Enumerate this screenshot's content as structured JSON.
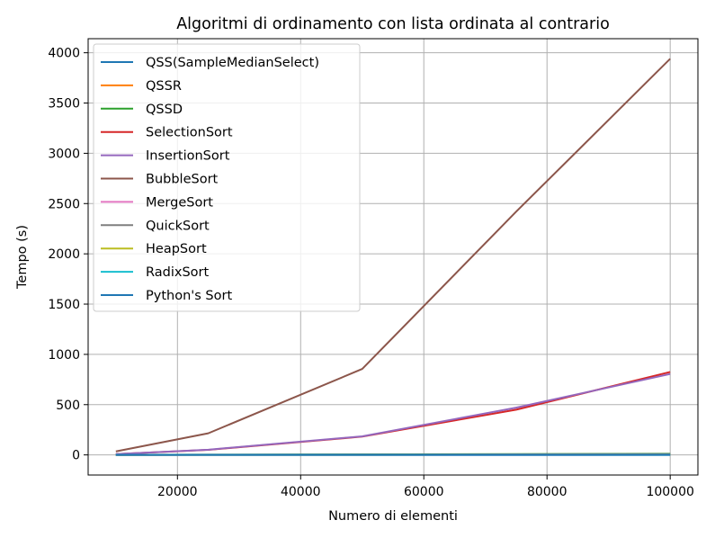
{
  "chart_data": {
    "type": "line",
    "title": "Algoritmi di ordinamento con lista ordinata al contrario",
    "xlabel": "Numero di elementi",
    "ylabel": "Tempo (s)",
    "xlim": [
      5500,
      104500
    ],
    "ylim": [
      -200,
      4140
    ],
    "xticks": [
      20000,
      40000,
      60000,
      80000,
      100000
    ],
    "yticks": [
      0,
      500,
      1000,
      1500,
      2000,
      2500,
      3000,
      3500,
      4000
    ],
    "grid": true,
    "legend_position": "upper-left",
    "x": [
      10000,
      25000,
      50000,
      75000,
      100000
    ],
    "series": [
      {
        "name": "QSS(SampleMedianSelect)",
        "color": "#1f77b4",
        "values": [
          0.5,
          1.5,
          3,
          5,
          7
        ]
      },
      {
        "name": "QSSR",
        "color": "#ff7f0e",
        "values": [
          0.3,
          1,
          2,
          3,
          4
        ]
      },
      {
        "name": "QSSD",
        "color": "#2ca02c",
        "values": [
          0.8,
          2.5,
          5,
          8,
          11
        ]
      },
      {
        "name": "SelectionSort",
        "color": "#d62728",
        "values": [
          8,
          50,
          182,
          450,
          825
        ]
      },
      {
        "name": "InsertionSort",
        "color": "#9467bd",
        "values": [
          8,
          52,
          185,
          470,
          805
        ]
      },
      {
        "name": "BubbleSort",
        "color": "#8c564b",
        "values": [
          35,
          215,
          855,
          2420,
          3940
        ]
      },
      {
        "name": "MergeSort",
        "color": "#e377c2",
        "values": [
          0.1,
          0.2,
          0.4,
          0.6,
          0.8
        ]
      },
      {
        "name": "QuickSort",
        "color": "#7f7f7f",
        "values": [
          0.5,
          2,
          4,
          6,
          8
        ]
      },
      {
        "name": "HeapSort",
        "color": "#bcbd22",
        "values": [
          0.1,
          0.3,
          0.6,
          0.9,
          1.2
        ]
      },
      {
        "name": "RadixSort",
        "color": "#17becf",
        "values": [
          0.1,
          0.2,
          0.3,
          0.5,
          0.6
        ]
      },
      {
        "name": "Python's Sort",
        "color": "#1f77b4",
        "values": [
          0,
          0,
          0,
          0,
          0
        ]
      }
    ]
  }
}
